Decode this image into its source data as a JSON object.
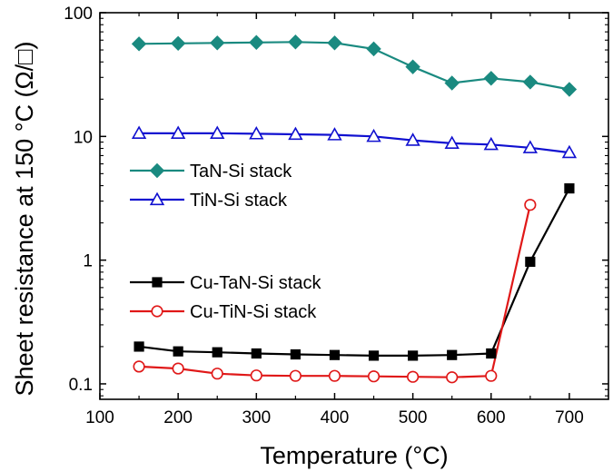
{
  "chart_data": {
    "type": "line",
    "xlabel": "Temperature (°C)",
    "ylabel": "Sheet resistance at 150 °C (Ω/□)",
    "xlim": [
      100,
      750
    ],
    "ylim": [
      0.075,
      100
    ],
    "yscale": "log",
    "grid": false,
    "legend_placement": "left",
    "x_ticks": [
      100,
      200,
      300,
      400,
      500,
      600,
      700
    ],
    "x_tick_labels": [
      "100",
      "200",
      "300",
      "400",
      "500",
      "600",
      "700"
    ],
    "y_ticks": [
      0.1,
      1,
      10,
      100
    ],
    "y_tick_labels": [
      "0.1",
      "1",
      "10",
      "100"
    ],
    "series": [
      {
        "name": "TaN-Si stack",
        "color": "#1a8a80",
        "marker": "filled-diamond",
        "x": [
          150,
          200,
          250,
          300,
          350,
          400,
          450,
          500,
          550,
          600,
          650,
          700
        ],
        "y": [
          56,
          56.5,
          57,
          57.5,
          58,
          57,
          51,
          36.5,
          27,
          29.5,
          27.5,
          24
        ]
      },
      {
        "name": "TiN-Si stack",
        "color": "#1010d0",
        "marker": "open-triangle",
        "x": [
          150,
          200,
          250,
          300,
          350,
          400,
          450,
          500,
          550,
          600,
          650,
          700
        ],
        "y": [
          10.6,
          10.6,
          10.6,
          10.5,
          10.4,
          10.3,
          10.0,
          9.3,
          8.8,
          8.6,
          8.1,
          7.4
        ]
      },
      {
        "name": "Cu-TaN-Si stack",
        "color": "#000000",
        "marker": "filled-square",
        "x": [
          150,
          200,
          250,
          300,
          350,
          400,
          450,
          500,
          550,
          600,
          650,
          700
        ],
        "y": [
          0.2,
          0.183,
          0.18,
          0.176,
          0.173,
          0.171,
          0.169,
          0.169,
          0.171,
          0.176,
          0.97,
          3.8
        ]
      },
      {
        "name": "Cu-TiN-Si stack",
        "color": "#e01818",
        "marker": "open-circle",
        "x": [
          150,
          200,
          250,
          300,
          350,
          400,
          450,
          500,
          550,
          600,
          650
        ],
        "y": [
          0.138,
          0.133,
          0.121,
          0.117,
          0.116,
          0.116,
          0.115,
          0.114,
          0.113,
          0.116,
          2.8
        ]
      }
    ]
  }
}
